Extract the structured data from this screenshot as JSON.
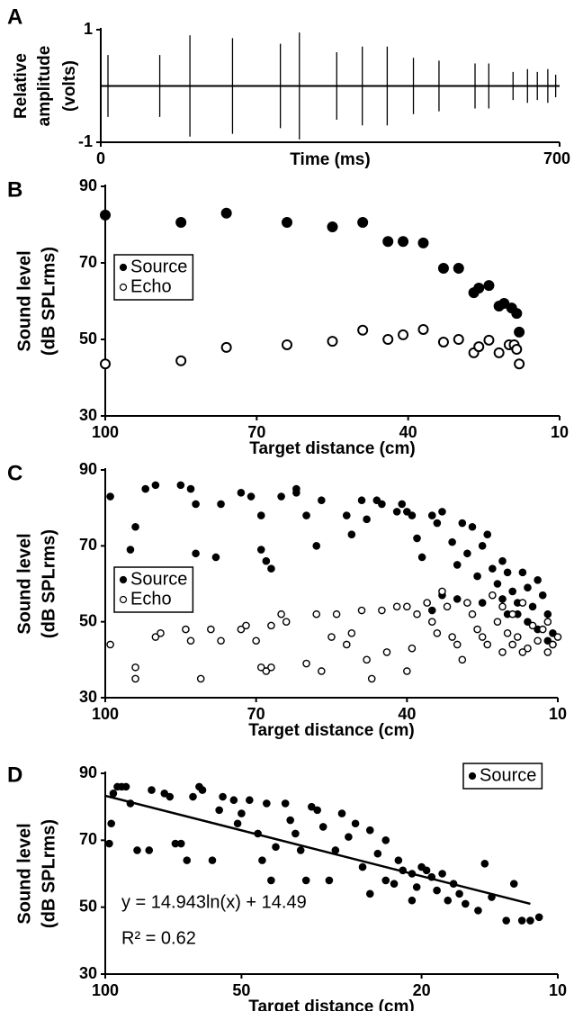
{
  "chart_data": [
    {
      "panel": "A",
      "type": "pulse",
      "color": "#000000",
      "x": [
        11,
        90,
        136,
        201,
        274,
        303,
        360,
        399,
        437,
        477,
        516,
        571,
        592,
        629,
        651,
        666,
        682,
        694
      ],
      "values": [
        0.55,
        0.55,
        0.9,
        0.85,
        0.75,
        0.95,
        0.6,
        0.7,
        0.7,
        0.5,
        0.45,
        0.4,
        0.4,
        0.25,
        0.3,
        0.25,
        0.3,
        0.2
      ],
      "xlim": [
        0,
        700
      ],
      "ylim": [
        -1,
        1
      ],
      "xticks": [
        0,
        700
      ],
      "yticks": [
        -1,
        1
      ],
      "xlabel": "Time (ms)",
      "ylabel": [
        "Relative",
        "amplitude",
        "(volts)"
      ]
    },
    {
      "panel": "B",
      "type": "scatter",
      "legend": "left",
      "xlim": [
        100,
        10
      ],
      "ylim": [
        30,
        90
      ],
      "xticks": [
        100,
        70,
        40,
        10
      ],
      "yticks": [
        30,
        50,
        70,
        90
      ],
      "xlabel": "Target distance (cm)",
      "ylabel": [
        "Sound level",
        "(dB SPLrms)"
      ],
      "series": [
        {
          "name": "Source",
          "marker": "filled",
          "color": "#000000",
          "x": [
            100,
            85,
            76,
            64,
            55,
            49,
            44,
            41,
            37,
            33,
            30,
            27,
            26,
            24,
            22,
            21,
            19.5,
            18.5,
            18
          ],
          "values": [
            82.5,
            80.6,
            83,
            80.6,
            79.4,
            80.6,
            75.6,
            75.6,
            75.2,
            68.6,
            68.6,
            62.2,
            63.4,
            64.1,
            58.7,
            59.4,
            58.2,
            56.8,
            51.9
          ]
        },
        {
          "name": "Echo",
          "marker": "open",
          "color": "#000000",
          "x": [
            100,
            85,
            76,
            64,
            55,
            49,
            44,
            41,
            37,
            33,
            30,
            27,
            26,
            24,
            22,
            20,
            19,
            18.5,
            18
          ],
          "values": [
            43.6,
            44.4,
            47.9,
            48.6,
            49.5,
            52.4,
            50,
            51.2,
            52.6,
            49.3,
            50,
            46.5,
            48.1,
            49.8,
            46.5,
            48.6,
            48.6,
            47.4,
            43.6
          ]
        }
      ]
    },
    {
      "panel": "C",
      "type": "scatter",
      "legend": "left",
      "xlim": [
        100,
        10
      ],
      "ylim": [
        30,
        90
      ],
      "xticks": [
        100,
        70,
        40,
        10
      ],
      "yticks": [
        30,
        50,
        70,
        90
      ],
      "xlabel": "Target distance (cm)",
      "ylabel": [
        "Sound level",
        "(dB SPLrms)"
      ],
      "series": [
        {
          "name": "Source",
          "marker": "filled",
          "color": "#000000",
          "x": [
            99,
            95,
            94,
            92,
            90,
            85,
            83,
            82,
            82,
            78,
            77,
            73,
            71,
            69,
            69,
            68,
            67,
            65,
            62,
            62,
            60,
            58,
            57,
            52,
            51,
            49,
            48,
            46,
            45,
            42,
            41,
            40,
            39,
            38,
            37,
            35,
            34,
            33,
            31,
            30,
            29,
            28,
            27,
            26,
            25,
            24,
            23,
            22,
            21,
            21,
            20,
            19,
            18,
            18,
            17,
            16,
            16,
            15,
            14,
            14,
            13,
            12,
            12,
            11,
            11,
            30,
            33,
            35,
            25,
            20
          ],
          "values": [
            83,
            69,
            75,
            85,
            86,
            86,
            85,
            81,
            68,
            67,
            81,
            84,
            83,
            78,
            69,
            66,
            64,
            83,
            85,
            84,
            78,
            70,
            82,
            78,
            73,
            82,
            77,
            82,
            81,
            79,
            81,
            79,
            78,
            72,
            67,
            78,
            76,
            79,
            71,
            65,
            76,
            68,
            75,
            62,
            70,
            73,
            64,
            60,
            66,
            56,
            63,
            58,
            55,
            52,
            63,
            50,
            59,
            54,
            48,
            61,
            57,
            52,
            45,
            47,
            44,
            56,
            57,
            53,
            55,
            52
          ]
        },
        {
          "name": "Echo",
          "marker": "open",
          "color": "#000000",
          "x": [
            99,
            94,
            94,
            90,
            89,
            84,
            83,
            81,
            79,
            77,
            73,
            72,
            70,
            69,
            68,
            67,
            67,
            65,
            64,
            60,
            58,
            57,
            55,
            54,
            52,
            51,
            49,
            48,
            47,
            45,
            44,
            42,
            40,
            40,
            39,
            38,
            36,
            35,
            34,
            33,
            32,
            31,
            30,
            29,
            28,
            27,
            26,
            25,
            24,
            23,
            22,
            21,
            20,
            19,
            19,
            18,
            17,
            16,
            15,
            14,
            13,
            12,
            11,
            10,
            12,
            21,
            17
          ],
          "values": [
            44,
            35,
            38,
            46,
            47,
            48,
            45,
            35,
            48,
            45,
            48,
            49,
            45,
            38,
            37,
            49,
            38,
            52,
            50,
            39,
            52,
            37,
            46,
            52,
            44,
            47,
            53,
            40,
            35,
            53,
            42,
            54,
            37,
            54,
            43,
            52,
            55,
            50,
            47,
            58,
            54,
            46,
            44,
            40,
            55,
            52,
            48,
            46,
            44,
            57,
            50,
            54,
            47,
            44,
            52,
            46,
            55,
            43,
            49,
            45,
            48,
            42,
            44,
            46,
            50,
            42,
            42
          ]
        }
      ]
    },
    {
      "panel": "D",
      "type": "scatter",
      "legend": "upper right",
      "xscale": "log",
      "xlim": [
        100,
        10
      ],
      "ylim": [
        30,
        90
      ],
      "xticks": [
        100,
        50,
        20,
        10
      ],
      "yticks": [
        30,
        50,
        70,
        90
      ],
      "xlabel": "Target distance (cm)",
      "ylabel": [
        "Sound level",
        "(dB SPLrms)"
      ],
      "annotations": [
        "y = 14.943ln(x) + 14.49",
        "R² = 0.62"
      ],
      "fit": {
        "x": [
          100,
          11.5
        ],
        "values": [
          83.3,
          51
        ]
      },
      "series": [
        {
          "name": "Source",
          "marker": "filled",
          "color": "#000000",
          "x": [
            98,
            97,
            96,
            94,
            92,
            90,
            88,
            85,
            80,
            79,
            74,
            72,
            70,
            68,
            66,
            64,
            62,
            61,
            58,
            56,
            55,
            52,
            51,
            50,
            48,
            46,
            45,
            44,
            42,
            40,
            39,
            38,
            36,
            35,
            34,
            33,
            32,
            31,
            30,
            29,
            28,
            27,
            26,
            25,
            24,
            23,
            22.5,
            22,
            21,
            20.5,
            20,
            19.5,
            19,
            18.5,
            18,
            17.5,
            17,
            16.5,
            16,
            15,
            14.5,
            14,
            13,
            12.5,
            12,
            11.5,
            11,
            43,
            37,
            26,
            24,
            21
          ],
          "values": [
            69,
            75,
            84,
            86,
            86,
            86,
            81,
            67,
            67,
            85,
            84,
            83,
            69,
            69,
            64,
            83,
            86,
            85,
            64,
            79,
            83,
            82,
            75,
            78,
            82,
            72,
            64,
            81,
            68,
            81,
            76,
            72,
            58,
            80,
            79,
            74,
            58,
            67,
            78,
            71,
            75,
            62,
            73,
            66,
            70,
            57,
            64,
            61,
            60,
            56,
            62,
            61,
            59,
            55,
            60,
            52,
            57,
            54,
            51,
            49,
            63,
            53,
            46,
            57,
            46,
            46,
            47,
            58,
            67,
            54,
            58,
            52
          ]
        }
      ]
    }
  ]
}
